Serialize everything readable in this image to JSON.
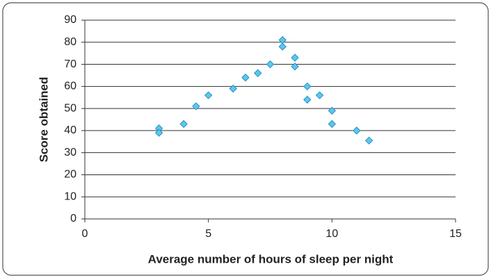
{
  "chart_data": {
    "type": "scatter",
    "x_label": "Average number of hours of sleep per night",
    "y_label": "Score obtained",
    "x": [
      3,
      3,
      4,
      4.5,
      5,
      6,
      6.5,
      7,
      7.5,
      8,
      8,
      8.5,
      8.5,
      9,
      9,
      9.5,
      10,
      10,
      11,
      11.5
    ],
    "values": [
      41,
      39,
      43,
      51,
      56,
      59,
      64,
      66,
      70,
      81,
      78,
      73,
      69,
      60,
      54,
      56,
      49,
      43,
      40,
      35.5
    ],
    "color": "#5bc8f0",
    "xlim": [
      0,
      15
    ],
    "xticks": [
      0,
      5,
      10,
      15
    ],
    "ylim": [
      0,
      90
    ],
    "yticks": [
      0,
      10,
      20,
      30,
      40,
      50,
      60,
      70,
      80,
      90
    ],
    "grid": true
  }
}
